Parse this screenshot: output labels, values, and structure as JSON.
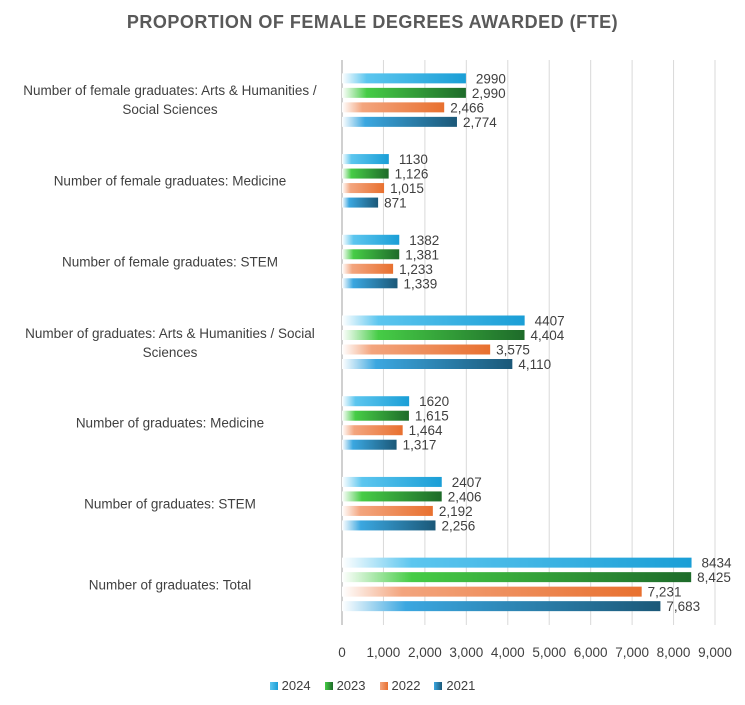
{
  "chart_data": {
    "type": "bar",
    "orientation": "horizontal",
    "title": "PROPORTION OF FEMALE DEGREES AWARDED (FTE)",
    "categories": [
      "Number of female graduates: Arts & Humanities / Social Sciences",
      "Number of female graduates: Medicine",
      "Number of female graduates: STEM",
      "Number of graduates: Arts & Humanities / Social Sciences",
      "Number of graduates: Medicine",
      "Number of graduates: STEM",
      "Number of graduates: Total"
    ],
    "series": [
      {
        "name": "2024",
        "color": "#1a9ed6",
        "color_light": "#5cc6ef",
        "values": [
          2990,
          1130,
          1382,
          4407,
          1620,
          2407,
          8434
        ],
        "labels": [
          "2990",
          "1130",
          "1382",
          "4407",
          "1620",
          "2407",
          "8434"
        ]
      },
      {
        "name": "2023",
        "color": "#1e6b2a",
        "color_light": "#46cc46",
        "values": [
          2990,
          1126,
          1381,
          4404,
          1615,
          2406,
          8425
        ],
        "labels": [
          "2,990",
          "1,126",
          "1,381",
          "4,404",
          "1,615",
          "2,406",
          "8,425"
        ]
      },
      {
        "name": "2022",
        "color": "#e8702f",
        "color_light": "#f3a57e",
        "values": [
          2466,
          1015,
          1233,
          3575,
          1464,
          2192,
          7231
        ],
        "labels": [
          "2,466",
          "1,015",
          "1,233",
          "3,575",
          "1,464",
          "2,192",
          "7,231"
        ]
      },
      {
        "name": "2021",
        "color": "#1b5878",
        "color_light": "#3ba7e0",
        "values": [
          2774,
          871,
          1339,
          4110,
          1317,
          2256,
          7683
        ],
        "labels": [
          "2,774",
          "871",
          "1,339",
          "4,110",
          "1,317",
          "2,256",
          "7,683"
        ]
      }
    ],
    "xlim": [
      0,
      9000
    ],
    "xticks": [
      "0",
      "1,000",
      "2,000",
      "3,000",
      "4,000",
      "5,000",
      "6,000",
      "7,000",
      "8,000",
      "9,000"
    ],
    "grid": true,
    "legend": "bottom"
  }
}
